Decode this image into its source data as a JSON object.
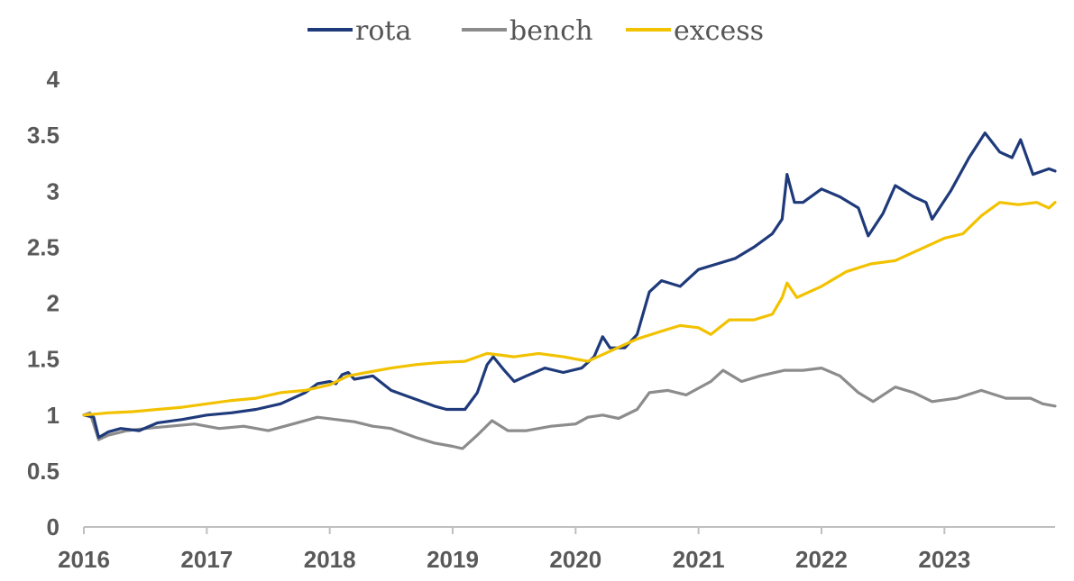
{
  "chart_data": {
    "type": "line",
    "title": "",
    "xlabel": "",
    "ylabel": "",
    "xlim": [
      2016,
      2023.9
    ],
    "ylim": [
      0,
      4
    ],
    "x_ticks": [
      "2016",
      "2017",
      "2018",
      "2019",
      "2020",
      "2021",
      "2022",
      "2023"
    ],
    "y_ticks": [
      "0",
      "0.5",
      "1",
      "1.5",
      "2",
      "2.5",
      "3",
      "3.5",
      "4"
    ],
    "legend_position": "top-center",
    "grid": false,
    "series": [
      {
        "name": "rota",
        "color": "#1f3a7a",
        "points": [
          [
            2016.0,
            1.0
          ],
          [
            2016.08,
            0.98
          ],
          [
            2016.12,
            0.8
          ],
          [
            2016.2,
            0.85
          ],
          [
            2016.3,
            0.88
          ],
          [
            2016.45,
            0.86
          ],
          [
            2016.6,
            0.93
          ],
          [
            2016.8,
            0.96
          ],
          [
            2017.0,
            1.0
          ],
          [
            2017.2,
            1.02
          ],
          [
            2017.4,
            1.05
          ],
          [
            2017.6,
            1.1
          ],
          [
            2017.8,
            1.2
          ],
          [
            2017.9,
            1.28
          ],
          [
            2018.0,
            1.3
          ],
          [
            2018.05,
            1.28
          ],
          [
            2018.1,
            1.36
          ],
          [
            2018.15,
            1.38
          ],
          [
            2018.2,
            1.32
          ],
          [
            2018.35,
            1.35
          ],
          [
            2018.5,
            1.22
          ],
          [
            2018.6,
            1.18
          ],
          [
            2018.75,
            1.12
          ],
          [
            2018.85,
            1.08
          ],
          [
            2018.95,
            1.05
          ],
          [
            2019.1,
            1.05
          ],
          [
            2019.2,
            1.2
          ],
          [
            2019.28,
            1.45
          ],
          [
            2019.33,
            1.52
          ],
          [
            2019.42,
            1.4
          ],
          [
            2019.5,
            1.3
          ],
          [
            2019.6,
            1.35
          ],
          [
            2019.75,
            1.42
          ],
          [
            2019.9,
            1.38
          ],
          [
            2020.05,
            1.42
          ],
          [
            2020.15,
            1.52
          ],
          [
            2020.22,
            1.7
          ],
          [
            2020.28,
            1.6
          ],
          [
            2020.4,
            1.6
          ],
          [
            2020.5,
            1.72
          ],
          [
            2020.6,
            2.1
          ],
          [
            2020.7,
            2.2
          ],
          [
            2020.85,
            2.15
          ],
          [
            2021.0,
            2.3
          ],
          [
            2021.15,
            2.35
          ],
          [
            2021.3,
            2.4
          ],
          [
            2021.45,
            2.5
          ],
          [
            2021.6,
            2.62
          ],
          [
            2021.68,
            2.75
          ],
          [
            2021.72,
            3.15
          ],
          [
            2021.78,
            2.9
          ],
          [
            2021.85,
            2.9
          ],
          [
            2022.0,
            3.02
          ],
          [
            2022.15,
            2.95
          ],
          [
            2022.3,
            2.85
          ],
          [
            2022.38,
            2.6
          ],
          [
            2022.5,
            2.8
          ],
          [
            2022.6,
            3.05
          ],
          [
            2022.75,
            2.95
          ],
          [
            2022.85,
            2.9
          ],
          [
            2022.9,
            2.75
          ],
          [
            2023.05,
            3.0
          ],
          [
            2023.2,
            3.3
          ],
          [
            2023.33,
            3.52
          ],
          [
            2023.45,
            3.35
          ],
          [
            2023.55,
            3.3
          ],
          [
            2023.62,
            3.46
          ],
          [
            2023.72,
            3.15
          ],
          [
            2023.85,
            3.2
          ],
          [
            2023.9,
            3.18
          ]
        ]
      },
      {
        "name": "bench",
        "color": "#8c8c8c",
        "points": [
          [
            2016.0,
            1.0
          ],
          [
            2016.05,
            1.02
          ],
          [
            2016.12,
            0.78
          ],
          [
            2016.2,
            0.82
          ],
          [
            2016.35,
            0.86
          ],
          [
            2016.5,
            0.88
          ],
          [
            2016.7,
            0.9
          ],
          [
            2016.9,
            0.92
          ],
          [
            2017.1,
            0.88
          ],
          [
            2017.3,
            0.9
          ],
          [
            2017.5,
            0.86
          ],
          [
            2017.7,
            0.92
          ],
          [
            2017.9,
            0.98
          ],
          [
            2018.05,
            0.96
          ],
          [
            2018.2,
            0.94
          ],
          [
            2018.35,
            0.9
          ],
          [
            2018.5,
            0.88
          ],
          [
            2018.7,
            0.8
          ],
          [
            2018.85,
            0.75
          ],
          [
            2019.0,
            0.72
          ],
          [
            2019.08,
            0.7
          ],
          [
            2019.2,
            0.82
          ],
          [
            2019.32,
            0.95
          ],
          [
            2019.45,
            0.86
          ],
          [
            2019.6,
            0.86
          ],
          [
            2019.8,
            0.9
          ],
          [
            2020.0,
            0.92
          ],
          [
            2020.1,
            0.98
          ],
          [
            2020.22,
            1.0
          ],
          [
            2020.35,
            0.97
          ],
          [
            2020.5,
            1.05
          ],
          [
            2020.6,
            1.2
          ],
          [
            2020.75,
            1.22
          ],
          [
            2020.9,
            1.18
          ],
          [
            2021.1,
            1.3
          ],
          [
            2021.2,
            1.4
          ],
          [
            2021.35,
            1.3
          ],
          [
            2021.5,
            1.35
          ],
          [
            2021.7,
            1.4
          ],
          [
            2021.85,
            1.4
          ],
          [
            2022.0,
            1.42
          ],
          [
            2022.15,
            1.35
          ],
          [
            2022.3,
            1.2
          ],
          [
            2022.42,
            1.12
          ],
          [
            2022.6,
            1.25
          ],
          [
            2022.75,
            1.2
          ],
          [
            2022.9,
            1.12
          ],
          [
            2023.1,
            1.15
          ],
          [
            2023.3,
            1.22
          ],
          [
            2023.5,
            1.15
          ],
          [
            2023.7,
            1.15
          ],
          [
            2023.8,
            1.1
          ],
          [
            2023.9,
            1.08
          ]
        ]
      },
      {
        "name": "excess",
        "color": "#f2c200",
        "points": [
          [
            2016.0,
            1.0
          ],
          [
            2016.2,
            1.02
          ],
          [
            2016.4,
            1.03
          ],
          [
            2016.6,
            1.05
          ],
          [
            2016.8,
            1.07
          ],
          [
            2017.0,
            1.1
          ],
          [
            2017.2,
            1.13
          ],
          [
            2017.4,
            1.15
          ],
          [
            2017.6,
            1.2
          ],
          [
            2017.8,
            1.22
          ],
          [
            2018.0,
            1.27
          ],
          [
            2018.15,
            1.35
          ],
          [
            2018.3,
            1.38
          ],
          [
            2018.5,
            1.42
          ],
          [
            2018.7,
            1.45
          ],
          [
            2018.9,
            1.47
          ],
          [
            2019.1,
            1.48
          ],
          [
            2019.28,
            1.55
          ],
          [
            2019.5,
            1.52
          ],
          [
            2019.7,
            1.55
          ],
          [
            2019.9,
            1.52
          ],
          [
            2020.1,
            1.48
          ],
          [
            2020.3,
            1.58
          ],
          [
            2020.5,
            1.68
          ],
          [
            2020.7,
            1.75
          ],
          [
            2020.85,
            1.8
          ],
          [
            2021.0,
            1.78
          ],
          [
            2021.1,
            1.72
          ],
          [
            2021.25,
            1.85
          ],
          [
            2021.45,
            1.85
          ],
          [
            2021.6,
            1.9
          ],
          [
            2021.68,
            2.05
          ],
          [
            2021.72,
            2.18
          ],
          [
            2021.8,
            2.05
          ],
          [
            2022.0,
            2.15
          ],
          [
            2022.2,
            2.28
          ],
          [
            2022.4,
            2.35
          ],
          [
            2022.6,
            2.38
          ],
          [
            2022.8,
            2.48
          ],
          [
            2023.0,
            2.58
          ],
          [
            2023.15,
            2.62
          ],
          [
            2023.3,
            2.78
          ],
          [
            2023.45,
            2.9
          ],
          [
            2023.6,
            2.88
          ],
          [
            2023.75,
            2.9
          ],
          [
            2023.85,
            2.85
          ],
          [
            2023.9,
            2.9
          ]
        ]
      }
    ]
  }
}
